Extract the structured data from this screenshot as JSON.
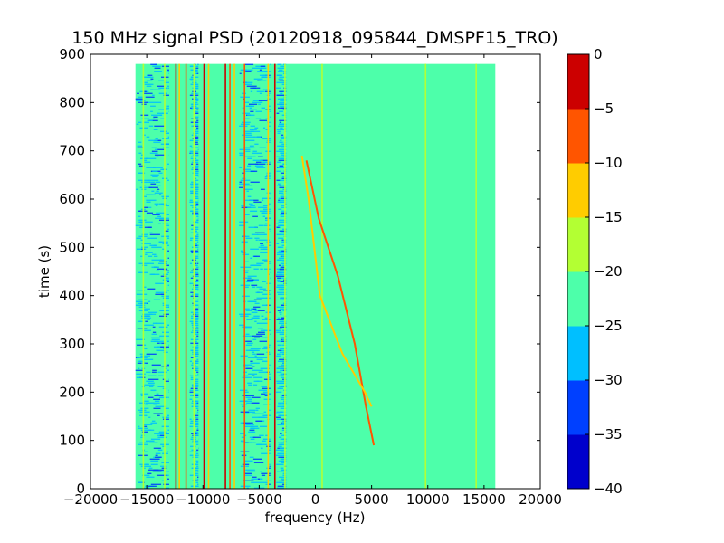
{
  "chart_data": {
    "type": "heatmap",
    "title": "150 MHz signal PSD (20120918_095844_DMSPF15_TRO)",
    "xlabel": "frequency (Hz)",
    "ylabel": "time (s)",
    "xlim": [
      -20000,
      20000
    ],
    "ylim": [
      0,
      900
    ],
    "data_extent": {
      "x": [
        -16000,
        16000
      ],
      "y": [
        0,
        880
      ]
    },
    "xticks": [
      -20000,
      -15000,
      -10000,
      -5000,
      0,
      5000,
      10000,
      15000,
      20000
    ],
    "xtick_labels": [
      "−20000",
      "−15000",
      "−10000",
      "−5000",
      "0",
      "5000",
      "10000",
      "15000",
      "20000"
    ],
    "yticks": [
      0,
      100,
      200,
      300,
      400,
      500,
      600,
      700,
      800,
      900
    ],
    "ytick_labels": [
      "0",
      "100",
      "200",
      "300",
      "400",
      "500",
      "600",
      "700",
      "800",
      "900"
    ],
    "background_level": -22.5,
    "colorbar": {
      "levels": [
        -40,
        -35,
        -30,
        -25,
        -20,
        -15,
        -10,
        -5,
        0
      ],
      "tick_labels": [
        "−40",
        "−35",
        "−30",
        "−25",
        "−20",
        "−15",
        "−10",
        "−5",
        "0"
      ],
      "colors": [
        "#0000cc",
        "#0040ff",
        "#00bfff",
        "#4dffaa",
        "#b3ff33",
        "#ffcc00",
        "#ff5500",
        "#cc0000"
      ]
    },
    "vertical_lines": [
      {
        "x": -15300,
        "level": -17.5
      },
      {
        "x": -13400,
        "level": -17.5
      },
      {
        "x": -12400,
        "level": -2.5
      },
      {
        "x": -12100,
        "level": -12.5
      },
      {
        "x": -11500,
        "level": -7.5
      },
      {
        "x": -10800,
        "level": -17.5
      },
      {
        "x": -9900,
        "level": -2.5
      },
      {
        "x": -9500,
        "level": -12.5
      },
      {
        "x": -8000,
        "level": -2.5
      },
      {
        "x": -7600,
        "level": -7.5
      },
      {
        "x": -7200,
        "level": -12.5
      },
      {
        "x": -6300,
        "level": -7.5
      },
      {
        "x": -4200,
        "level": -12.5
      },
      {
        "x": -3600,
        "level": -2.5
      },
      {
        "x": -2700,
        "level": -17.5
      },
      {
        "x": 600,
        "level": -17.5
      },
      {
        "x": 9800,
        "level": -17.5
      },
      {
        "x": 14300,
        "level": -17.5
      }
    ],
    "noise_bands": [
      {
        "x": [
          -16000,
          -13000
        ],
        "level": -27.5
      },
      {
        "x": [
          -11200,
          -10400
        ],
        "level": -27.5
      },
      {
        "x": [
          -6800,
          -4000
        ],
        "level": -27.5
      },
      {
        "x": [
          -3500,
          -2600
        ],
        "level": -27.5
      }
    ],
    "doppler_tracks": [
      {
        "level": -7.5,
        "points": [
          [
            -800,
            680
          ],
          [
            300,
            560
          ],
          [
            2000,
            440
          ],
          [
            3500,
            300
          ],
          [
            4500,
            170
          ],
          [
            5200,
            90
          ]
        ]
      },
      {
        "level": -12.5,
        "points": [
          [
            -1200,
            690
          ],
          [
            -600,
            600
          ],
          [
            400,
            400
          ],
          [
            2400,
            280
          ],
          [
            4400,
            200
          ],
          [
            5000,
            170
          ]
        ]
      }
    ]
  }
}
